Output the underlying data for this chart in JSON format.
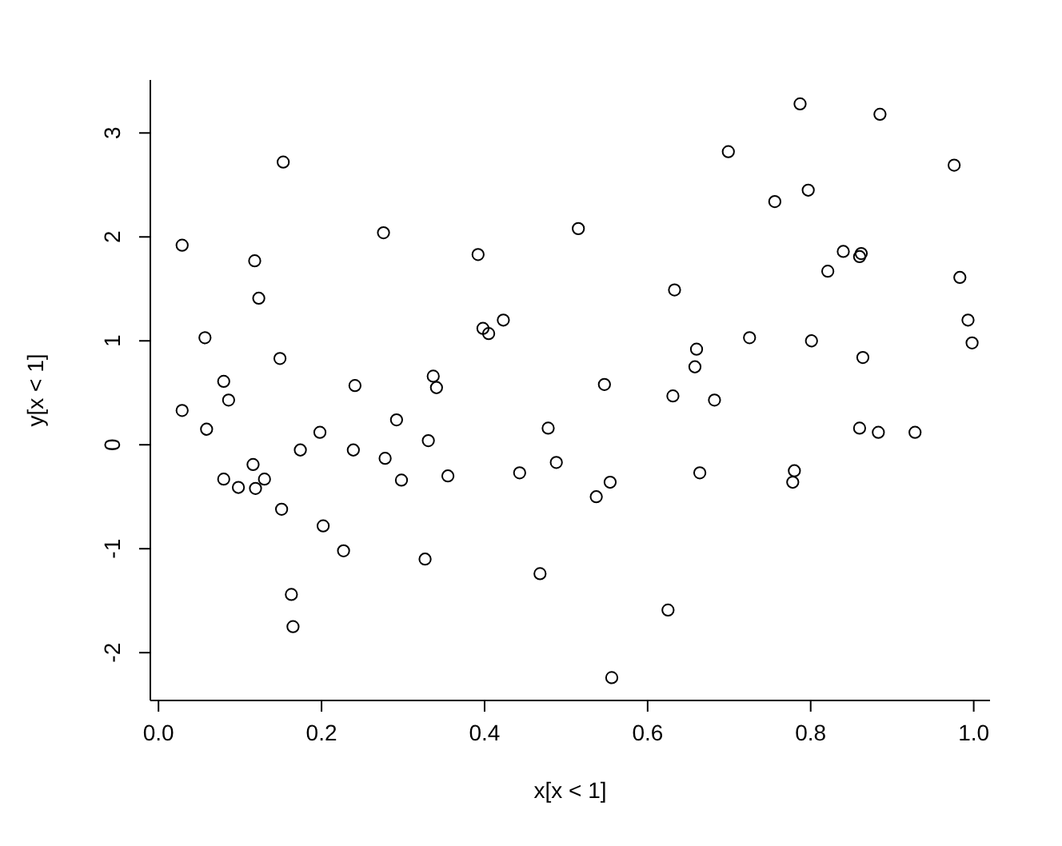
{
  "chart_data": {
    "type": "scatter",
    "xlabel": "x[x < 1]",
    "ylabel": "y[x < 1]",
    "marker": "circle",
    "grid": false,
    "legend": false,
    "xlim": [
      -0.01,
      1.02
    ],
    "ylim": [
      -2.46,
      3.51
    ],
    "xticks": [
      {
        "value": 0,
        "label": "0.0"
      },
      {
        "value": 0.2,
        "label": "0.2"
      },
      {
        "value": 0.4,
        "label": "0.4"
      },
      {
        "value": 0.6,
        "label": "0.6"
      },
      {
        "value": 0.8,
        "label": "0.8"
      },
      {
        "value": 1,
        "label": "1.0"
      }
    ],
    "yticks": [
      -2,
      -1,
      0,
      1,
      2,
      3
    ],
    "series": [
      {
        "color": "#000000",
        "x": [
          0.153,
          0.029,
          0.276,
          0.118,
          0.123,
          0.057,
          0.149,
          0.08,
          0.241,
          0.337,
          0.341,
          0.086,
          0.029,
          0.292,
          0.059,
          0.198,
          0.331,
          0.174,
          0.239,
          0.278,
          0.116,
          0.08,
          0.13,
          0.298,
          0.098,
          0.119,
          0.151,
          0.202,
          0.227,
          0.327,
          0.163,
          0.165,
          0.515,
          0.392,
          0.633,
          0.423,
          0.398,
          0.405,
          0.66,
          0.658,
          0.547,
          0.631,
          0.478,
          0.355,
          0.443,
          0.488,
          0.554,
          0.537,
          0.664,
          0.468,
          0.625,
          0.556,
          0.787,
          0.885,
          0.699,
          0.976,
          0.797,
          0.756,
          0.84,
          0.862,
          0.86,
          0.821,
          0.983,
          0.993,
          0.998,
          0.725,
          0.801,
          0.864,
          0.682,
          0.86,
          0.883,
          0.928,
          0.78,
          0.778
        ],
        "values": [
          2.72,
          1.92,
          2.04,
          1.77,
          1.41,
          1.03,
          0.83,
          0.61,
          0.57,
          0.66,
          0.55,
          0.43,
          0.33,
          0.24,
          0.15,
          0.12,
          0.04,
          -0.05,
          -0.05,
          -0.13,
          -0.19,
          -0.33,
          -0.33,
          -0.34,
          -0.41,
          -0.42,
          -0.62,
          -0.78,
          -1.02,
          -1.1,
          -1.44,
          -1.75,
          2.08,
          1.83,
          1.49,
          1.2,
          1.12,
          1.07,
          0.92,
          0.75,
          0.58,
          0.47,
          0.16,
          -0.3,
          -0.27,
          -0.17,
          -0.36,
          -0.5,
          -0.27,
          -1.24,
          -1.59,
          -2.24,
          3.28,
          3.18,
          2.82,
          2.69,
          2.45,
          2.34,
          1.86,
          1.84,
          1.81,
          1.67,
          1.61,
          1.2,
          0.98,
          1.03,
          1.0,
          0.84,
          0.43,
          0.16,
          0.12,
          0.12,
          -0.25,
          -0.36
        ]
      }
    ]
  }
}
